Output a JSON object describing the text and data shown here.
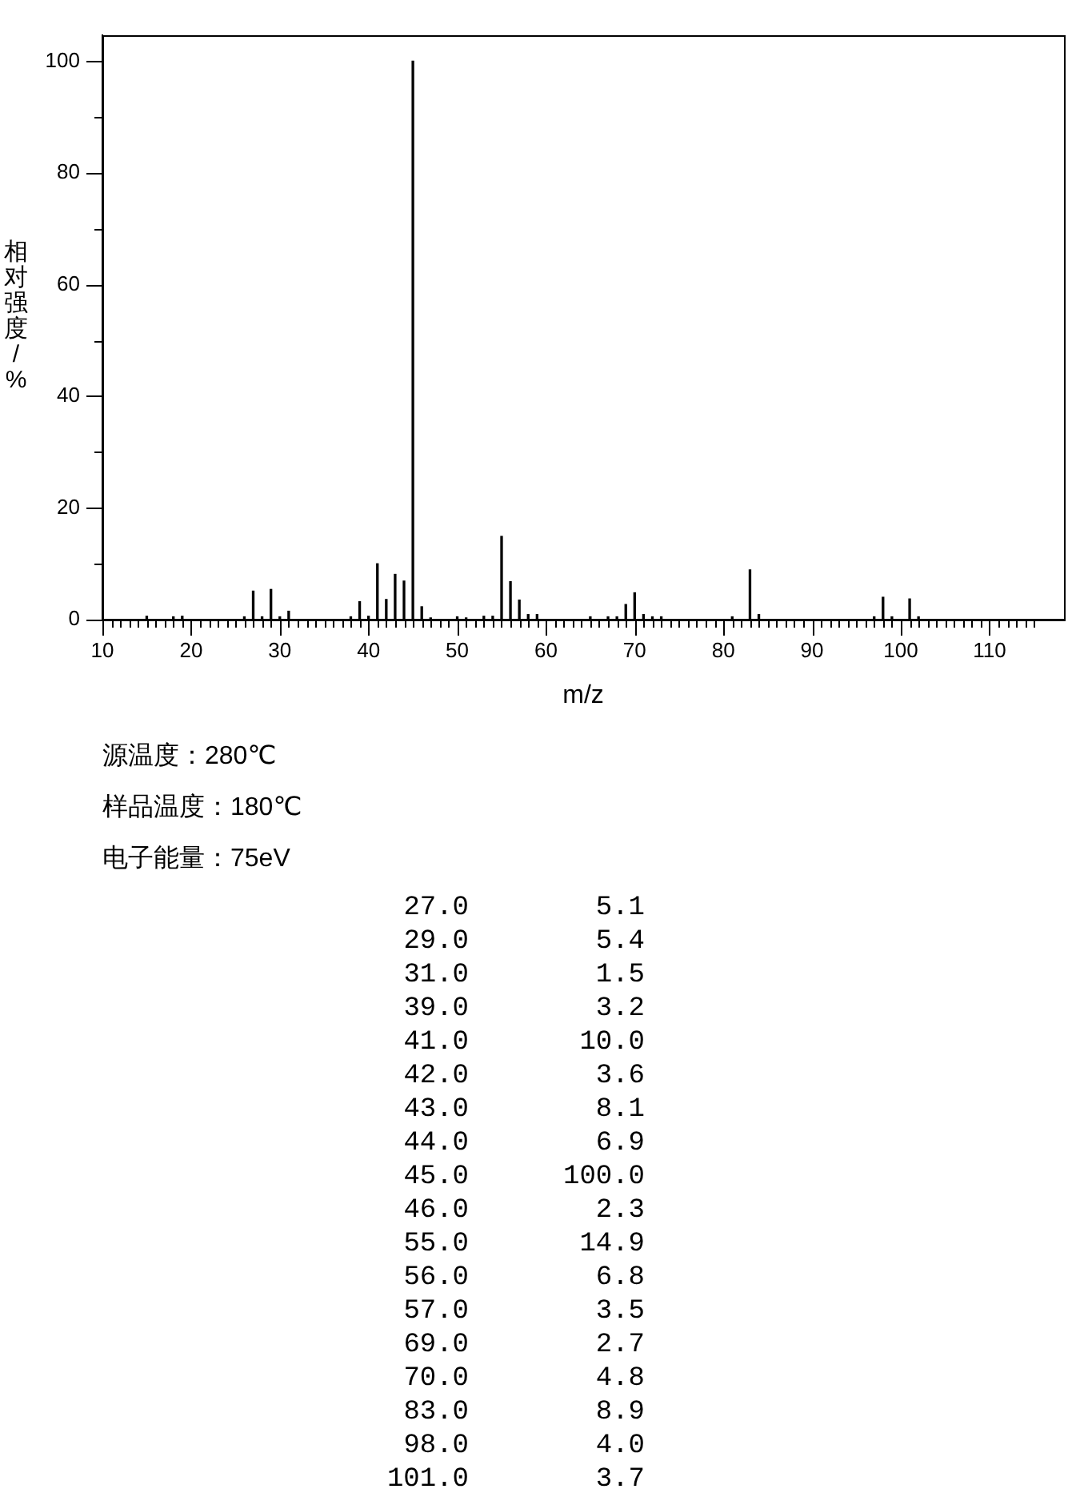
{
  "chart_data": [
    {
      "type": "bar",
      "xlabel": "m/z",
      "ylabel": "相对强度/%",
      "x": [
        15,
        18,
        19,
        26,
        27,
        28,
        29,
        30,
        31,
        38,
        39,
        40,
        41,
        42,
        43,
        44,
        45,
        46,
        47,
        50,
        51,
        53,
        54,
        55,
        56,
        57,
        58,
        59,
        65,
        67,
        68,
        69,
        70,
        71,
        72,
        73,
        81,
        83,
        84,
        97,
        98,
        99,
        101,
        102
      ],
      "values": [
        0.6,
        0.5,
        0.6,
        0.5,
        5.1,
        0.5,
        5.4,
        0.5,
        1.5,
        0.5,
        3.2,
        0.6,
        10.0,
        3.6,
        8.1,
        6.9,
        100.0,
        2.3,
        0.3,
        0.5,
        0.3,
        0.6,
        0.6,
        14.9,
        6.8,
        3.5,
        0.9,
        0.9,
        0.5,
        0.5,
        0.5,
        2.7,
        4.8,
        0.9,
        0.5,
        0.5,
        0.5,
        8.9,
        0.9,
        0.5,
        4.0,
        0.5,
        3.7,
        0.5
      ],
      "color": "#000000",
      "xlim": [
        10,
        118.4
      ],
      "ylim": [
        0,
        104.7
      ],
      "xticks": [
        10,
        {
          "value": 11,
          "label": null
        },
        {
          "value": 12,
          "label": null
        },
        {
          "value": 13,
          "label": null
        },
        {
          "value": 14,
          "label": null
        },
        {
          "value": 15,
          "label": null
        },
        {
          "value": 16,
          "label": null
        },
        {
          "value": 17,
          "label": null
        },
        {
          "value": 18,
          "label": null
        },
        {
          "value": 19,
          "label": null
        },
        20,
        {
          "value": 21,
          "label": null
        },
        {
          "value": 22,
          "label": null
        },
        {
          "value": 23,
          "label": null
        },
        {
          "value": 24,
          "label": null
        },
        {
          "value": 25,
          "label": null
        },
        {
          "value": 26,
          "label": null
        },
        {
          "value": 27,
          "label": null
        },
        {
          "value": 28,
          "label": null
        },
        {
          "value": 29,
          "label": null
        },
        30,
        {
          "value": 31,
          "label": null
        },
        {
          "value": 32,
          "label": null
        },
        {
          "value": 33,
          "label": null
        },
        {
          "value": 34,
          "label": null
        },
        {
          "value": 35,
          "label": null
        },
        {
          "value": 36,
          "label": null
        },
        {
          "value": 37,
          "label": null
        },
        {
          "value": 38,
          "label": null
        },
        {
          "value": 39,
          "label": null
        },
        40,
        {
          "value": 41,
          "label": null
        },
        {
          "value": 42,
          "label": null
        },
        {
          "value": 43,
          "label": null
        },
        {
          "value": 44,
          "label": null
        },
        {
          "value": 45,
          "label": null
        },
        {
          "value": 46,
          "label": null
        },
        {
          "value": 47,
          "label": null
        },
        {
          "value": 48,
          "label": null
        },
        {
          "value": 49,
          "label": null
        },
        50,
        {
          "value": 51,
          "label": null
        },
        {
          "value": 52,
          "label": null
        },
        {
          "value": 53,
          "label": null
        },
        {
          "value": 54,
          "label": null
        },
        {
          "value": 55,
          "label": null
        },
        {
          "value": 56,
          "label": null
        },
        {
          "value": 57,
          "label": null
        },
        {
          "value": 58,
          "label": null
        },
        {
          "value": 59,
          "label": null
        },
        60,
        {
          "value": 61,
          "label": null
        },
        {
          "value": 62,
          "label": null
        },
        {
          "value": 63,
          "label": null
        },
        {
          "value": 64,
          "label": null
        },
        {
          "value": 65,
          "label": null
        },
        {
          "value": 66,
          "label": null
        },
        {
          "value": 67,
          "label": null
        },
        {
          "value": 68,
          "label": null
        },
        {
          "value": 69,
          "label": null
        },
        70,
        {
          "value": 71,
          "label": null
        },
        {
          "value": 72,
          "label": null
        },
        {
          "value": 73,
          "label": null
        },
        {
          "value": 74,
          "label": null
        },
        {
          "value": 75,
          "label": null
        },
        {
          "value": 76,
          "label": null
        },
        {
          "value": 77,
          "label": null
        },
        {
          "value": 78,
          "label": null
        },
        {
          "value": 79,
          "label": null
        },
        80,
        {
          "value": 81,
          "label": null
        },
        {
          "value": 82,
          "label": null
        },
        {
          "value": 83,
          "label": null
        },
        {
          "value": 84,
          "label": null
        },
        {
          "value": 85,
          "label": null
        },
        {
          "value": 86,
          "label": null
        },
        {
          "value": 87,
          "label": null
        },
        {
          "value": 88,
          "label": null
        },
        {
          "value": 89,
          "label": null
        },
        90,
        {
          "value": 91,
          "label": null
        },
        {
          "value": 92,
          "label": null
        },
        {
          "value": 93,
          "label": null
        },
        {
          "value": 94,
          "label": null
        },
        {
          "value": 95,
          "label": null
        },
        {
          "value": 96,
          "label": null
        },
        {
          "value": 97,
          "label": null
        },
        {
          "value": 98,
          "label": null
        },
        {
          "value": 99,
          "label": null
        },
        100,
        {
          "value": 101,
          "label": null
        },
        {
          "value": 102,
          "label": null
        },
        {
          "value": 103,
          "label": null
        },
        {
          "value": 104,
          "label": null
        },
        {
          "value": 105,
          "label": null
        },
        {
          "value": 106,
          "label": null
        },
        {
          "value": 107,
          "label": null
        },
        {
          "value": 108,
          "label": null
        },
        {
          "value": 109,
          "label": null
        },
        110,
        {
          "value": 111,
          "label": null
        },
        {
          "value": 112,
          "label": null
        },
        {
          "value": 113,
          "label": null
        },
        {
          "value": 114,
          "label": null
        },
        {
          "value": 115,
          "label": null
        }
      ],
      "yticks": [
        0,
        {
          "value": 10,
          "label": null
        },
        20,
        {
          "value": 30,
          "label": null
        },
        40,
        {
          "value": 50,
          "label": null
        },
        60,
        {
          "value": 70,
          "label": null
        },
        80,
        {
          "value": 90,
          "label": null
        },
        100
      ],
      "annotations": [
        "源温度：280℃",
        "样品温度：180℃",
        "电子能量：75eV"
      ]
    },
    {
      "type": "other",
      "annotations": [
        "27.0 5.1",
        "29.0 5.4",
        "31.0 1.5",
        "39.0 3.2",
        "41.0 10.0",
        "42.0 3.6",
        "43.0 8.1",
        "44.0 6.9",
        "45.0 100.0",
        "46.0 2.3",
        "55.0 14.9",
        "56.0 6.8",
        "57.0 3.5",
        "69.0 2.7",
        "70.0 4.8",
        "83.0 8.9",
        "98.0 4.0",
        "101.0 3.7"
      ]
    }
  ]
}
